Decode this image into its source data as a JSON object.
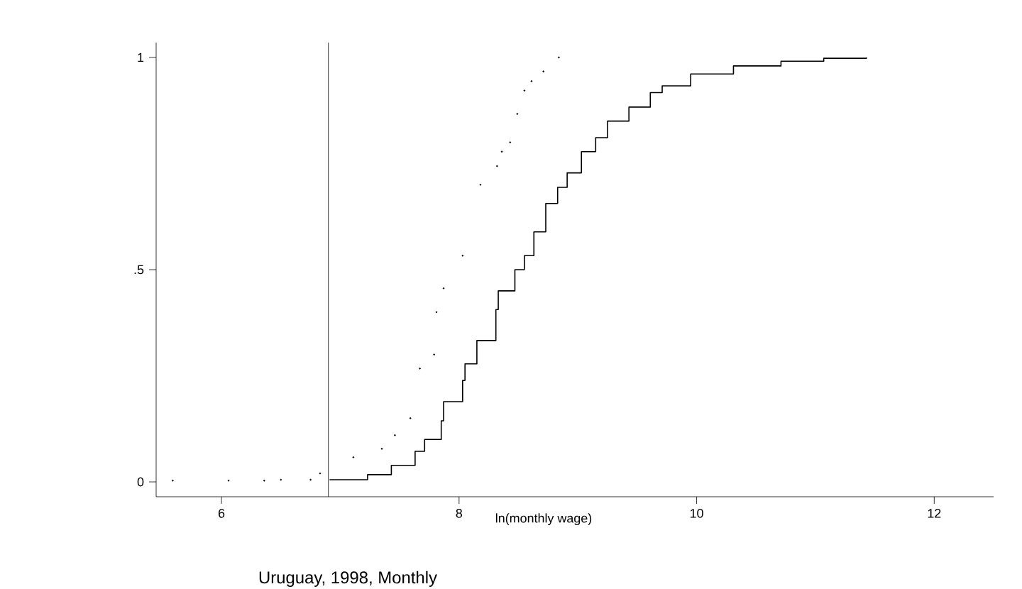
{
  "chart_data": {
    "type": "step",
    "title": "Uruguay, 1998, Monthly",
    "xlabel": "ln(monthly wage)",
    "xlim": [
      5.45,
      12.5
    ],
    "xticks": [
      6,
      8,
      10,
      12
    ],
    "ylim": [
      -0.035,
      1.035
    ],
    "yticks": [
      0,
      {
        "value": 0.5,
        "label": ".5"
      },
      1
    ],
    "grid": false,
    "ref_lines": [
      {
        "axis": "x",
        "value": 6.9,
        "color": "#000000"
      }
    ],
    "series": [
      {
        "type": "scatter",
        "marker": "circle",
        "color": "#000000",
        "x": [
          5.59,
          6.06,
          6.36,
          6.5,
          6.75,
          6.83,
          7.11,
          7.35,
          7.46,
          7.59,
          7.67,
          7.79,
          7.81,
          7.87,
          8.03,
          8.18,
          8.32,
          8.36,
          8.43,
          8.49,
          8.55,
          8.61,
          8.71,
          8.84
        ],
        "values": [
          0.003,
          0.003,
          0.003,
          0.005,
          0.005,
          0.02,
          0.058,
          0.078,
          0.11,
          0.15,
          0.267,
          0.3,
          0.4,
          0.456,
          0.533,
          0.7,
          0.744,
          0.778,
          0.8,
          0.867,
          0.922,
          0.944,
          0.967,
          1.0
        ]
      },
      {
        "line_style": "solid",
        "color": "#000000",
        "x": [
          6.91,
          7.23,
          7.43,
          7.63,
          7.71,
          7.85,
          7.87,
          8.03,
          8.05,
          8.15,
          8.31,
          8.33,
          8.47,
          8.55,
          8.63,
          8.73,
          8.83,
          8.91,
          9.03,
          9.15,
          9.25,
          9.43,
          9.61,
          9.71,
          9.95,
          10.31,
          10.71,
          11.07,
          11.43
        ],
        "values": [
          0.005,
          0.017,
          0.039,
          0.072,
          0.1,
          0.144,
          0.189,
          0.239,
          0.278,
          0.333,
          0.406,
          0.45,
          0.5,
          0.533,
          0.589,
          0.656,
          0.694,
          0.728,
          0.778,
          0.811,
          0.85,
          0.883,
          0.917,
          0.933,
          0.961,
          0.98,
          0.991,
          0.998,
          1.0
        ]
      }
    ]
  }
}
